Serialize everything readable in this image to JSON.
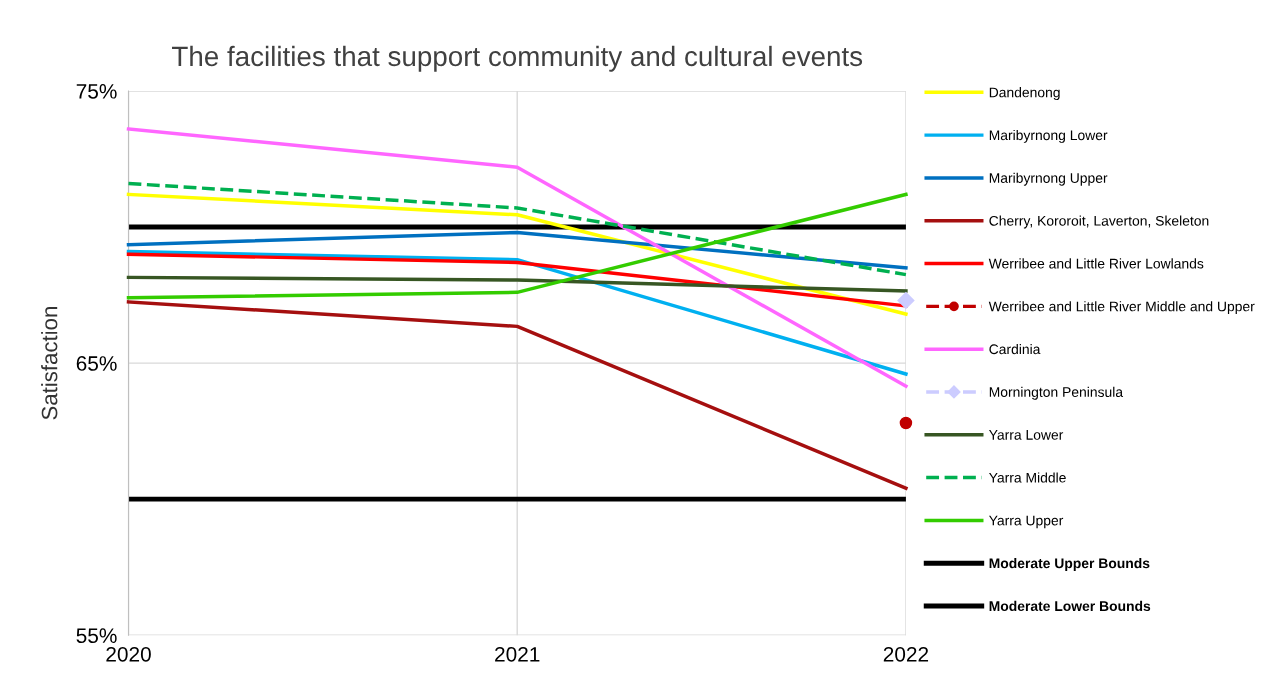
{
  "chart_data": {
    "type": "line",
    "title": "The facilities that support community and cultural events",
    "ylabel": "Satisfaction",
    "x": [
      2020,
      2021,
      2022
    ],
    "xlim": [
      2020,
      2022
    ],
    "xticks": [
      2020,
      2021,
      2022
    ],
    "ylim": [
      55,
      75
    ],
    "yticks": [
      {
        "value": 55,
        "label": "55%"
      },
      {
        "value": 65,
        "label": "65%"
      },
      {
        "value": 75,
        "label": "75%"
      }
    ],
    "grid": true,
    "legend": "right",
    "marker": "none",
    "line_style": "solid",
    "series": [
      {
        "name": "Dandenong",
        "color": "#ffff00",
        "values": [
          71.2,
          70.45,
          66.8
        ]
      },
      {
        "name": "Maribyrnong Lower",
        "color": "#00b0f0",
        "values": [
          69.1,
          68.8,
          64.6
        ]
      },
      {
        "name": "Maribyrnong Upper",
        "color": "#0070c0",
        "values": [
          69.35,
          69.8,
          68.5
        ]
      },
      {
        "name": "Cherry, Kororoit, Laverton, Skeleton",
        "color": "#a50f0f",
        "values": [
          67.25,
          66.35,
          60.4
        ]
      },
      {
        "name": "Werribee and Little River Lowlands",
        "color": "#ff0000",
        "values": [
          69.0,
          68.7,
          67.1
        ]
      },
      {
        "name": "Werribee and Little River Middle and Upper",
        "color": "#c00000",
        "line_style": "dashed",
        "marker": "circle",
        "values": [
          null,
          null,
          62.8
        ]
      },
      {
        "name": "Cardinia",
        "color": "#ff66ff",
        "values": [
          73.6,
          72.2,
          64.15
        ]
      },
      {
        "name": "Mornington Peninsula",
        "color": "#ccccff",
        "line_style": "dashed",
        "marker": "diamond",
        "values": [
          null,
          null,
          67.3
        ]
      },
      {
        "name": "Yarra Lower",
        "color": "#375623",
        "values": [
          68.15,
          68.05,
          67.65
        ]
      },
      {
        "name": "Yarra Middle",
        "color": "#00b050",
        "line_style": "dashed",
        "values": [
          71.6,
          70.7,
          68.25
        ]
      },
      {
        "name": "Yarra Upper",
        "color": "#33cc00",
        "values": [
          67.4,
          67.6,
          71.2
        ]
      }
    ],
    "ref_lines": [
      {
        "axis": "y",
        "value": 70,
        "label": "Moderate Upper Bounds",
        "color": "#000000"
      },
      {
        "axis": "y",
        "value": 60,
        "label": "Moderate Lower Bounds",
        "color": "#000000"
      }
    ]
  }
}
